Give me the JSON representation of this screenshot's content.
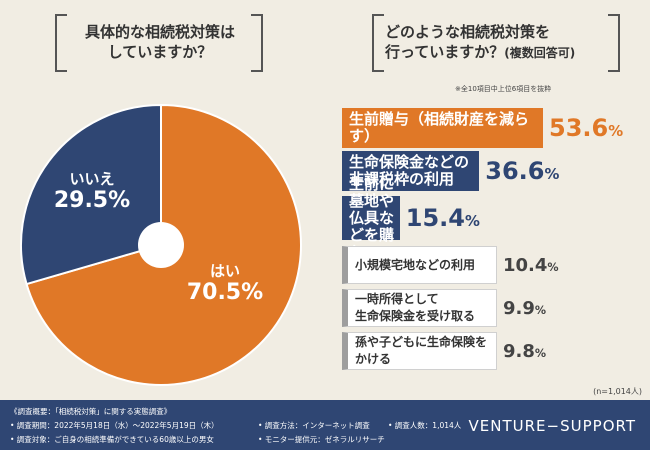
{
  "left_title": {
    "line1": "具体的な相続税対策は",
    "line2": "していますか？"
  },
  "right_title": {
    "line1": "どのような相続税対策を",
    "line2": "行っていますか？",
    "line2_small": "(複数回答可)"
  },
  "right_note": "※全10項目中上位6項目を抜粋",
  "sample_size": "(n=1,014人)",
  "chart_data": [
    {
      "type": "pie",
      "categories": [
        "はい",
        "いいえ"
      ],
      "values": [
        70.5,
        29.5
      ],
      "percent_labels": [
        "70.5%",
        "29.5%"
      ],
      "colors": [
        "#e07827",
        "#2f4673"
      ],
      "donut_hole": true
    },
    {
      "type": "bar",
      "orientation": "horizontal",
      "categories": [
        [
          "生前贈与（相続財産を減らす）"
        ],
        [
          "生命保険金などの",
          "非課税枠の利用"
        ],
        [
          "生前に墓地や",
          "仏具などを購入"
        ],
        [
          "小規模宅地などの利用"
        ],
        [
          "一時所得として",
          "生命保険金を受け取る"
        ],
        [
          "孫や子どもに生命保険をかける"
        ]
      ],
      "values": [
        53.6,
        36.6,
        15.4,
        10.4,
        9.9,
        9.8
      ],
      "value_labels": [
        "53.6%",
        "36.6%",
        "15.4%",
        "10.4%",
        "9.9%",
        "9.8%"
      ],
      "colors": [
        "#e07827",
        "#2f4673",
        "#2f4673",
        "#9e9e9e",
        "#9e9e9e",
        "#9e9e9e"
      ]
    }
  ],
  "footer": {
    "line1": "《調査概要：「相続税対策」に関する実態調査》",
    "line2": "• 調査期間：2022年5月18日（水）〜2022年5月19日（木）",
    "line3": "• 調査対象：ご自身の相続準備ができている60歳以上の男女",
    "method": "• 調査方法：インターネット調査",
    "count": "• 調査人数：1,014人",
    "provider": "• モニター提供元：ゼネラルリサーチ",
    "brand": "VENTURE−SUPPORT"
  }
}
